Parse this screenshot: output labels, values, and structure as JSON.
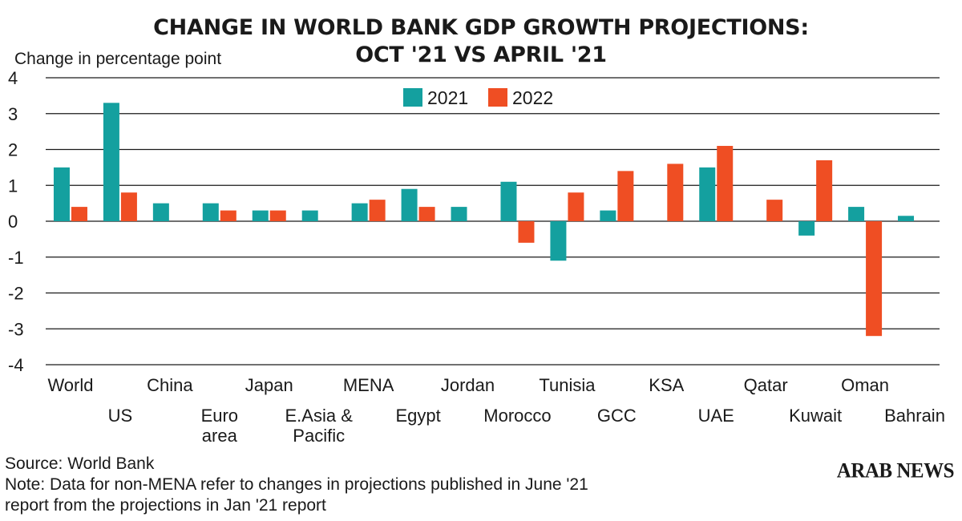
{
  "title_line1": "CHANGE IN WORLD BANK GDP GROWTH PROJECTIONS:",
  "title_line2": "OCT '21 VS APRIL '21",
  "source": "Source: World Bank",
  "note_line1": "Note: Data for non-MENA refer to changes in projections published in June '21",
  "note_line2": "report from the projections in Jan '21 report",
  "logo": "ARAB NEWS",
  "colors": {
    "2021": "#14a09f",
    "2022": "#ef4e23",
    "grid": "#1a1a1a",
    "text": "#1a1a1a"
  },
  "chart_data": {
    "type": "bar",
    "ylabel": "Change in percentage point",
    "xlabel": "",
    "ylim": [
      -4,
      4
    ],
    "yticks": [
      4,
      3,
      2,
      1,
      0,
      -1,
      -2,
      -3,
      -4
    ],
    "grid": true,
    "legend_position": "top-center",
    "categories": [
      {
        "label": [
          "World"
        ],
        "row": 0
      },
      {
        "label": [
          "US"
        ],
        "row": 1
      },
      {
        "label": [
          "China"
        ],
        "row": 0
      },
      {
        "label": [
          "Euro",
          "area"
        ],
        "row": 1
      },
      {
        "label": [
          "Japan"
        ],
        "row": 0
      },
      {
        "label": [
          "E.Asia &",
          "Pacific"
        ],
        "row": 1
      },
      {
        "label": [
          "MENA"
        ],
        "row": 0
      },
      {
        "label": [
          "Egypt"
        ],
        "row": 1
      },
      {
        "label": [
          "Jordan"
        ],
        "row": 0
      },
      {
        "label": [
          "Morocco"
        ],
        "row": 1
      },
      {
        "label": [
          "Tunisia"
        ],
        "row": 0
      },
      {
        "label": [
          "GCC"
        ],
        "row": 1
      },
      {
        "label": [
          "KSA"
        ],
        "row": 0
      },
      {
        "label": [
          "UAE"
        ],
        "row": 1
      },
      {
        "label": [
          "Qatar"
        ],
        "row": 0
      },
      {
        "label": [
          "Kuwait"
        ],
        "row": 1
      },
      {
        "label": [
          "Oman"
        ],
        "row": 0
      },
      {
        "label": [
          "Bahrain"
        ],
        "row": 1
      }
    ],
    "series": [
      {
        "name": "2021",
        "values": [
          1.5,
          3.3,
          0.5,
          0.5,
          0.3,
          0.3,
          0.5,
          0.9,
          0.4,
          1.1,
          -1.1,
          0.3,
          null,
          1.5,
          null,
          -0.4,
          0.4,
          0.15
        ]
      },
      {
        "name": "2022",
        "values": [
          0.4,
          0.8,
          null,
          0.3,
          0.3,
          null,
          0.6,
          0.4,
          null,
          -0.6,
          0.8,
          1.4,
          1.6,
          2.1,
          0.6,
          1.7,
          -3.2,
          null
        ]
      }
    ]
  }
}
